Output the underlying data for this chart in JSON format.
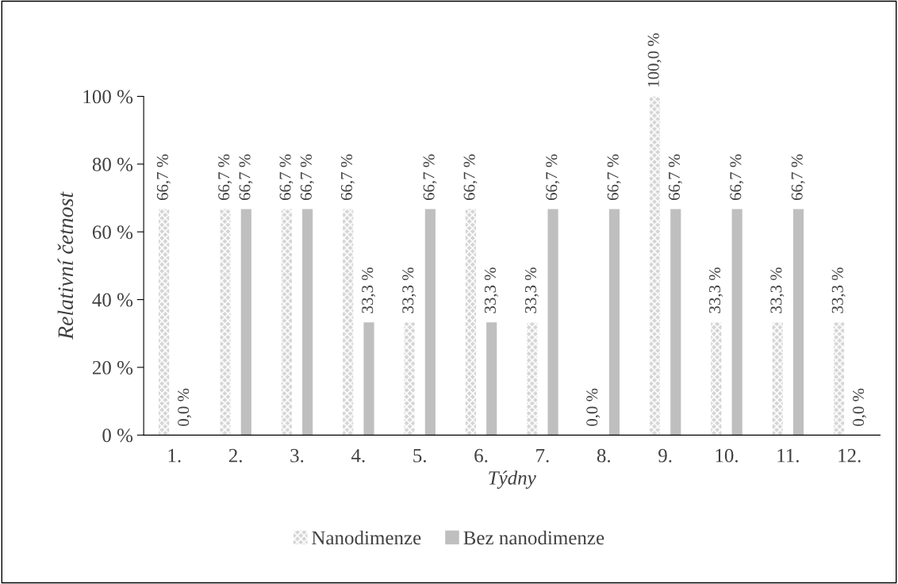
{
  "chart_data": {
    "type": "bar",
    "xlabel": "Týdny",
    "ylabel": "Relativní četnost",
    "categories": [
      "1.",
      "2.",
      "3.",
      "4.",
      "5.",
      "6.",
      "7.",
      "8.",
      "9.",
      "10.",
      "11.",
      "12."
    ],
    "series": [
      {
        "name": "Nanodimenze",
        "color": "#d4d4d4",
        "values": [
          66.7,
          66.7,
          66.7,
          66.7,
          33.3,
          66.7,
          33.3,
          0,
          100,
          33.3,
          33.3,
          33.3
        ],
        "value_labels": [
          "66,7 %",
          "66,7 %",
          "66,7 %",
          "66,7 %",
          "33,3 %",
          "66,7 %",
          "33,3 %",
          "0,0 %",
          "100,0 %",
          "33,3 %",
          "33,3 %",
          "33,3 %"
        ]
      },
      {
        "name": "Bez nanodimenze",
        "color": "#bfbfbf",
        "values": [
          0,
          66.7,
          66.7,
          33.3,
          66.7,
          33.3,
          66.7,
          66.7,
          66.7,
          66.7,
          66.7,
          0
        ],
        "value_labels": [
          "0,0 %",
          "66,7 %",
          "66,7 %",
          "33,3 %",
          "66,7 %",
          "33,3 %",
          "66,7 %",
          "66,7 %",
          "66,7 %",
          "66,7 %",
          "66,7 %",
          "0,0 %"
        ]
      }
    ],
    "ylim": [
      0,
      100
    ],
    "yticks": [
      {
        "value": 0,
        "label": "0 %"
      },
      {
        "value": 20,
        "label": "20 %"
      },
      {
        "value": 40,
        "label": "40 %"
      },
      {
        "value": 60,
        "label": "60 %"
      },
      {
        "value": 80,
        "label": "80 %"
      },
      {
        "value": 100,
        "label": "100 %"
      }
    ],
    "grid": false,
    "legend": "bottom"
  }
}
